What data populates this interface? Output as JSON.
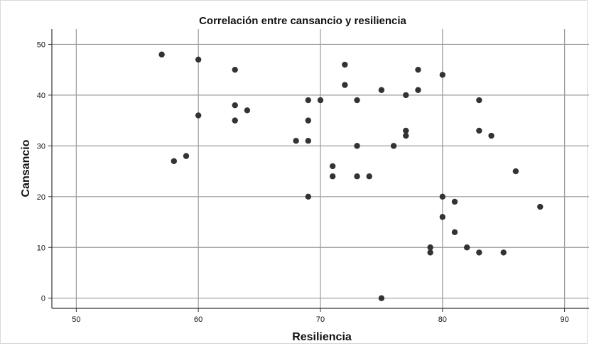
{
  "chart_data": {
    "type": "scatter",
    "title": "Correlación entre cansancio y resiliencia",
    "xlabel": "Resiliencia",
    "ylabel": "Cansancio",
    "xlim": [
      48,
      92
    ],
    "ylim": [
      -2,
      53
    ],
    "xticks": [
      50,
      60,
      70,
      80,
      90
    ],
    "yticks": [
      0,
      10,
      20,
      30,
      40,
      50
    ],
    "grid": true,
    "point_color": "#333333",
    "series": [
      {
        "points": [
          [
            57,
            48
          ],
          [
            58,
            27
          ],
          [
            59,
            28
          ],
          [
            60,
            47
          ],
          [
            60,
            36
          ],
          [
            63,
            45
          ],
          [
            63,
            38
          ],
          [
            63,
            35
          ],
          [
            64,
            37
          ],
          [
            68,
            31
          ],
          [
            69,
            39
          ],
          [
            69,
            35
          ],
          [
            69,
            31
          ],
          [
            69,
            20
          ],
          [
            70,
            39
          ],
          [
            71,
            26
          ],
          [
            71,
            24
          ],
          [
            72,
            46
          ],
          [
            72,
            42
          ],
          [
            73,
            39
          ],
          [
            73,
            30
          ],
          [
            73,
            24
          ],
          [
            74,
            24
          ],
          [
            75,
            41
          ],
          [
            75,
            0
          ],
          [
            76,
            30
          ],
          [
            77,
            40
          ],
          [
            77,
            33
          ],
          [
            77,
            32
          ],
          [
            78,
            45
          ],
          [
            78,
            41
          ],
          [
            79,
            10
          ],
          [
            79,
            9
          ],
          [
            80,
            44
          ],
          [
            80,
            20
          ],
          [
            80,
            16
          ],
          [
            81,
            19
          ],
          [
            81,
            13
          ],
          [
            82,
            10
          ],
          [
            83,
            39
          ],
          [
            83,
            33
          ],
          [
            83,
            9
          ],
          [
            84,
            32
          ],
          [
            85,
            9
          ],
          [
            86,
            25
          ],
          [
            88,
            18
          ]
        ]
      }
    ]
  }
}
